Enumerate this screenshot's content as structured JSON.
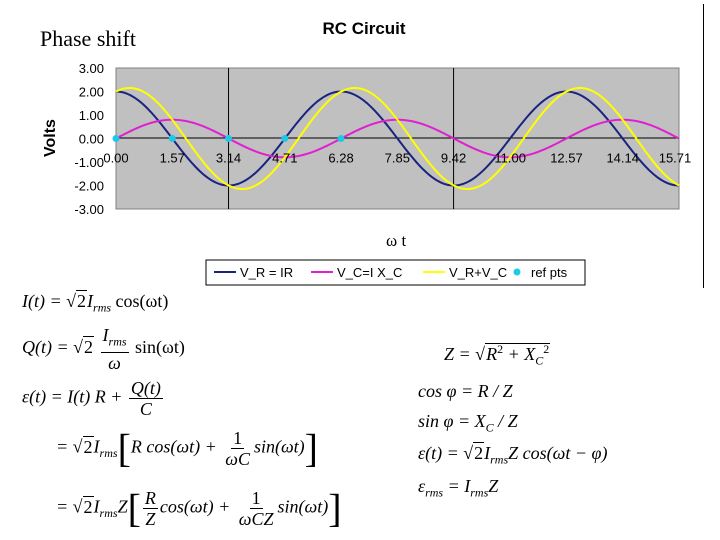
{
  "slide": {
    "heading": "Phase shift",
    "omega_t_label": "ω t"
  },
  "chart_data": {
    "type": "line",
    "title": "RC Circuit",
    "ylabel": "Volts",
    "xlabel": "",
    "ylim": [
      -3,
      3
    ],
    "xlim": [
      0,
      15.71
    ],
    "yticks": [
      "3.00",
      "2.00",
      "1.00",
      "0.00",
      "-1.00",
      "-2.00",
      "-3.00"
    ],
    "xticks": [
      {
        "x": 0,
        "label": "0.00"
      },
      {
        "x": 1.57,
        "label": "1.57"
      },
      {
        "x": 3.14,
        "label": "3.14"
      },
      {
        "x": 4.71,
        "label": "4.71"
      },
      {
        "x": 6.28,
        "label": "6.28"
      },
      {
        "x": 7.85,
        "label": "7.85"
      },
      {
        "x": 9.42,
        "label": "9.42"
      },
      {
        "x": 11.0,
        "label": "11.00"
      },
      {
        "x": 12.57,
        "label": "12.57"
      },
      {
        "x": 14.14,
        "label": "14.14"
      },
      {
        "x": 15.71,
        "label": "15.71"
      }
    ],
    "vlines": [
      3.14,
      9.42
    ],
    "series": [
      {
        "name": "V_R = IR",
        "color": "#1a237e",
        "amplitude": 2.0,
        "phase": 0,
        "kind": "line"
      },
      {
        "name": "V_C=I X_C",
        "color": "#e020d0",
        "amplitude": 0.8,
        "phase": -1.5708,
        "kind": "line"
      },
      {
        "name": "V_R+V_C",
        "color": "#ffff00",
        "amplitude": 2.15,
        "phase": -0.38,
        "kind": "line"
      },
      {
        "name": "ref pts",
        "color": "#1ec8e8",
        "kind": "points",
        "x": [
          0,
          1.57,
          3.14,
          4.71,
          6.28
        ],
        "y": [
          0,
          0,
          0,
          0,
          0
        ]
      }
    ],
    "grid": false,
    "legend": "bottom"
  },
  "equations": {
    "I_t": {
      "lhs": "I(t) = ",
      "sqrt": "2",
      "mid": "I",
      "sub": "rms",
      "rhs": " cos(ωt)"
    },
    "Q_t": {
      "lhs": "Q(t) = ",
      "sqrt": "2",
      "num": "I",
      "num_sub": "rms",
      "den": "ω",
      "rhs": " sin(ωt)"
    },
    "eps_t": {
      "lhs": "ε(t) = I(t) R + ",
      "num": "Q(t)",
      "den": "C"
    },
    "eps_2": {
      "lhs": "= ",
      "sqrt": "2",
      "mid": "I",
      "sub": "rms",
      "a": "R cos(ωt) + ",
      "num": "1",
      "den": "ωC",
      "b": "sin(ωt)"
    },
    "eps_3": {
      "lhs": "= ",
      "sqrt": "2",
      "mid": "I",
      "sub": "rms",
      "z": "Z",
      "num1": "R",
      "den1": "Z",
      "a": "cos(ωt) + ",
      "num2": "1",
      "den2": "ωCZ",
      "b": "sin(ωt)"
    },
    "Z": {
      "lhs": "Z = ",
      "r": "R",
      "exp": "2",
      "plus": " + X",
      "sub": "C",
      "exp2": "2"
    },
    "cos_phi": {
      "text": "cos φ = R / Z"
    },
    "sin_phi": {
      "lhs": "sin φ = X",
      "sub": "C",
      "rhs": " / Z"
    },
    "eps_right": {
      "lhs": "ε(t) = ",
      "sqrt": "2",
      "mid": "I",
      "sub": "rms",
      "rhs": "Z cos(ωt − φ)"
    },
    "eps_rms": {
      "lhs": "ε",
      "sub": "rms",
      "mid": " = I",
      "sub2": "rms",
      "rhs": "Z"
    }
  }
}
